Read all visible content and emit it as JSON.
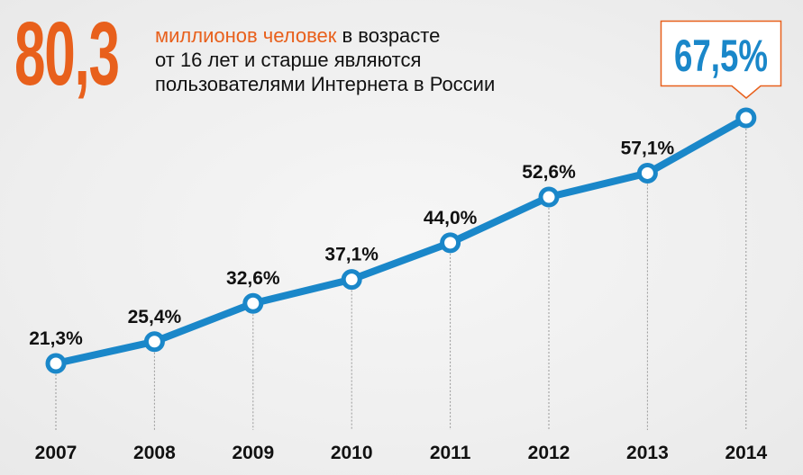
{
  "headline": {
    "number": "80,3",
    "accent_text": "миллионов человек",
    "line1_rest": " в возрасте",
    "line2": "от 16 лет и старше являются",
    "line3": "пользователями Интернета в России"
  },
  "callout": {
    "text": "67,5%"
  },
  "colors": {
    "line": "#1a87c9",
    "accent": "#e8601c",
    "text": "#111111"
  },
  "chart_data": {
    "type": "line",
    "title": "",
    "xlabel": "",
    "ylabel": "",
    "categories": [
      "2007",
      "2008",
      "2009",
      "2010",
      "2011",
      "2012",
      "2013",
      "2014"
    ],
    "values": [
      21.3,
      25.4,
      32.6,
      37.1,
      44.0,
      52.6,
      57.1,
      67.5
    ],
    "labels": [
      "21,3%",
      "25,4%",
      "32,6%",
      "37,1%",
      "44,0%",
      "52,6%",
      "57,1%",
      ""
    ],
    "grid": false
  }
}
